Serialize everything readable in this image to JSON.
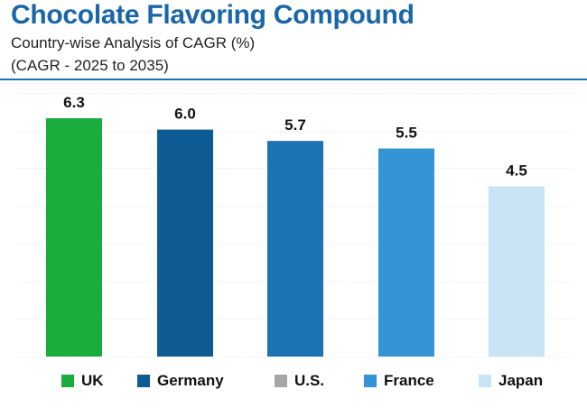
{
  "header": {
    "title": "Chocolate Flavoring Compound",
    "subtitle": "Country-wise Analysis of CAGR (%)",
    "subtitle2": "(CAGR - 2025 to 2035)"
  },
  "colors": {
    "title": "#1a66a8",
    "rule": "#1f6fb3",
    "grid": "#e3e3e3"
  },
  "chart_data": {
    "type": "bar",
    "title": "Chocolate Flavoring Compound",
    "subtitle": "Country-wise Analysis of CAGR (%)",
    "xlabel": "",
    "ylabel": "",
    "ylim": [
      0,
      6.3
    ],
    "grid": true,
    "legend_position": "bottom",
    "categories": [
      "UK",
      "Germany",
      "U.S.",
      "France",
      "Japan"
    ],
    "values": [
      6.3,
      6.0,
      5.7,
      5.5,
      4.5
    ],
    "labels": [
      "6.3",
      "6.0",
      "5.7",
      "5.5",
      "4.5"
    ],
    "series_colors": [
      "#1aad3d",
      "#0e5a93",
      "#1d72b2",
      "#3494d4",
      "#c8e4f5"
    ],
    "legend": [
      {
        "label": "UK",
        "color": "#1aad3d"
      },
      {
        "label": "Germany",
        "color": "#0e5a93"
      },
      {
        "label": "U.S.",
        "color": "#a6a6a6"
      },
      {
        "label": "France",
        "color": "#3494d4"
      },
      {
        "label": "Japan",
        "color": "#c8e4f5"
      }
    ]
  }
}
